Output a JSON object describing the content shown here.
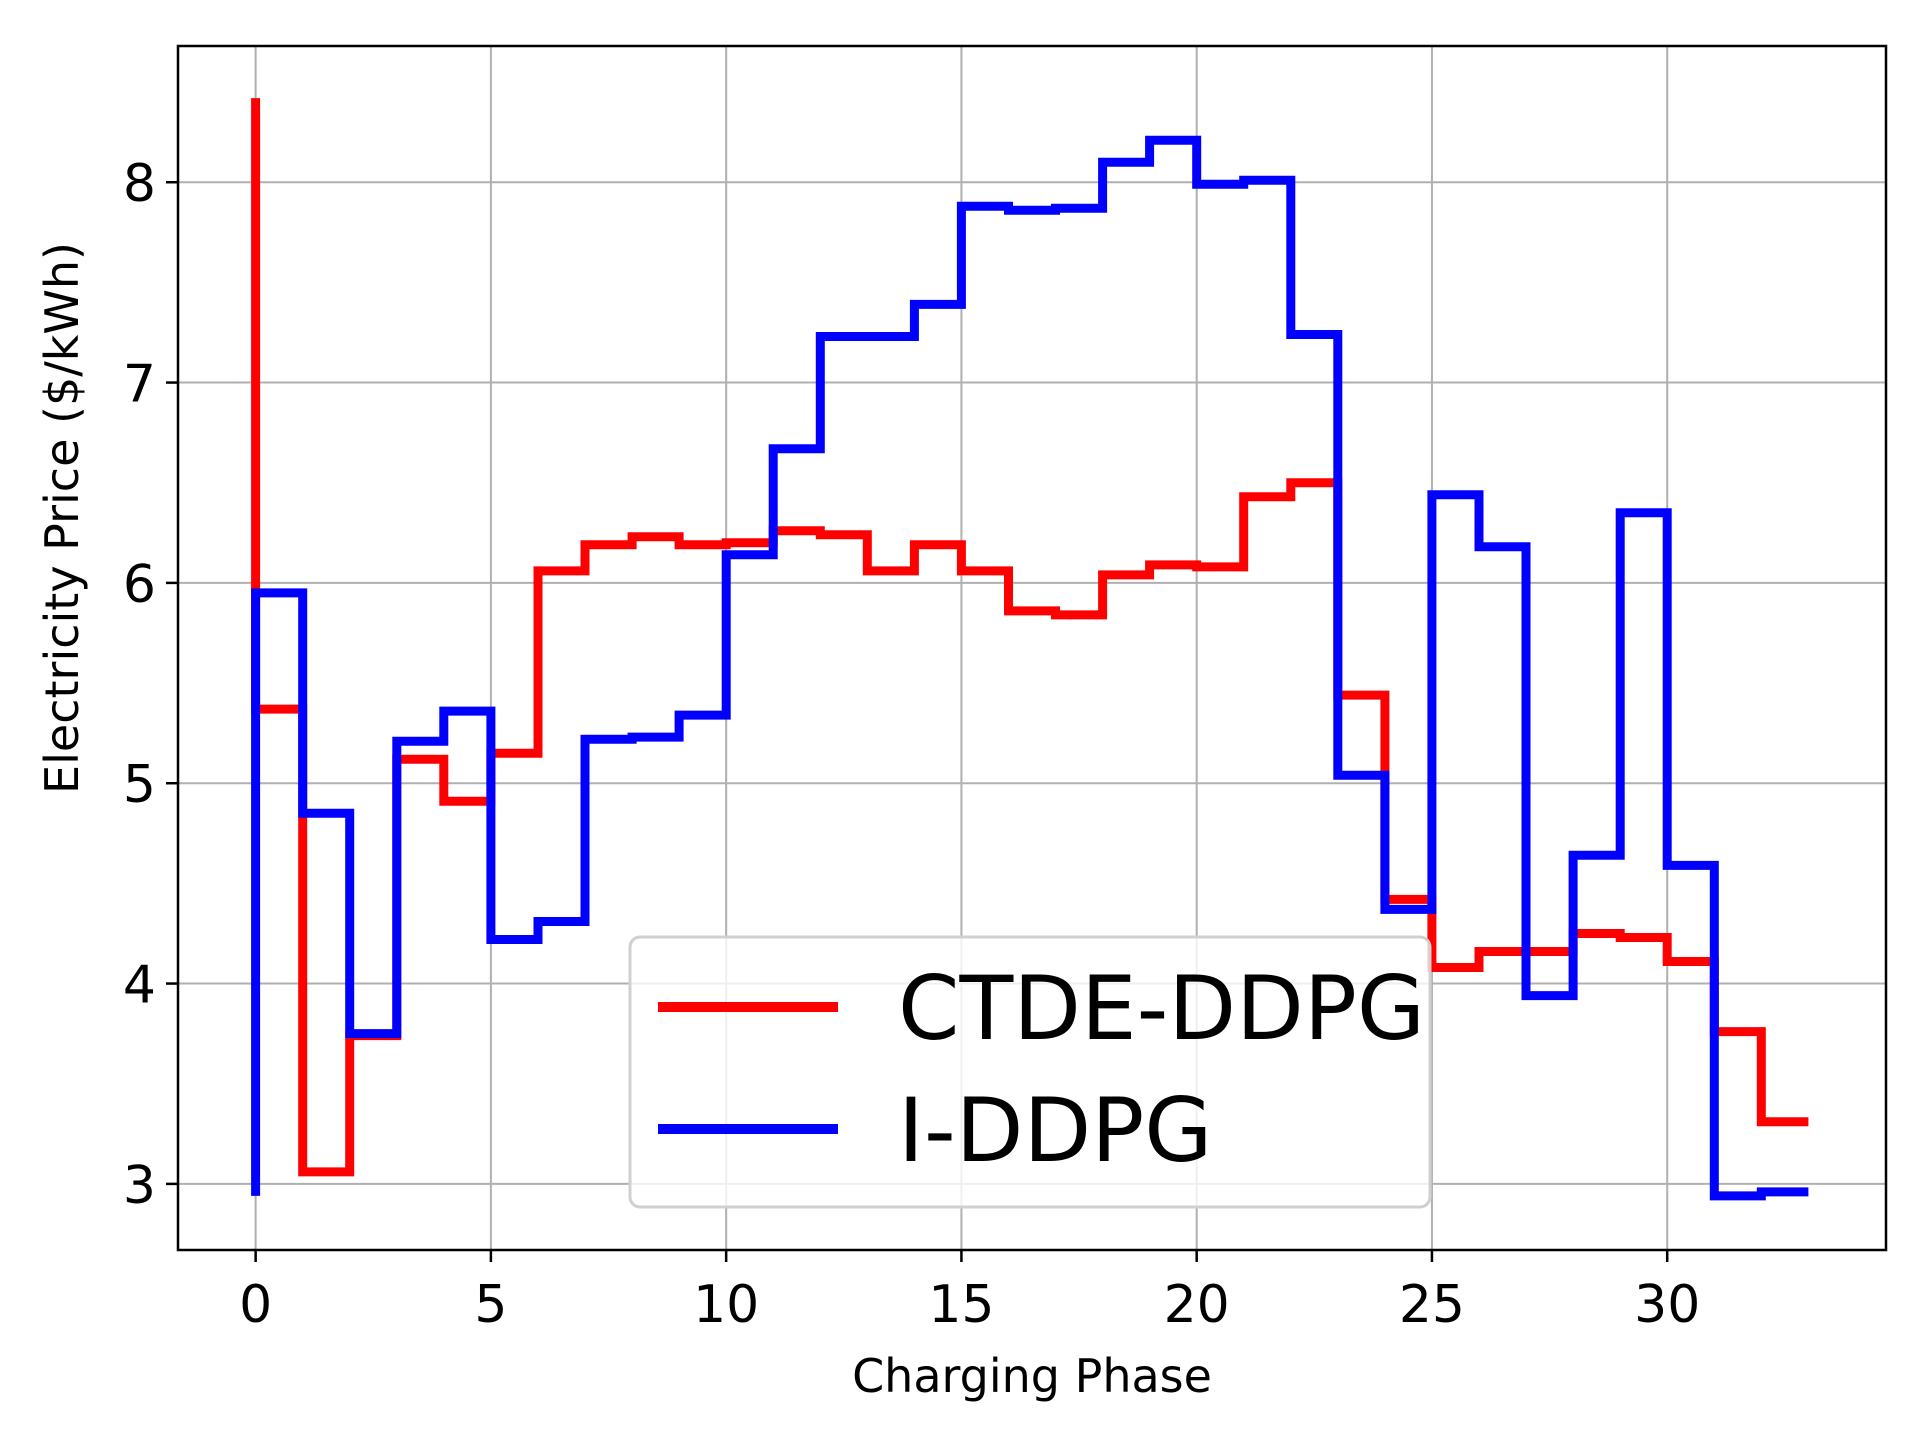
{
  "chart_data": {
    "type": "line",
    "step": "post",
    "title": "",
    "xlabel": "Charging Phase",
    "ylabel": "Electricity Price ($/kWh)",
    "xlim": [
      -1.65,
      34.65
    ],
    "ylim": [
      2.67,
      8.68
    ],
    "xticks": [
      0,
      5,
      10,
      15,
      20,
      25,
      30
    ],
    "yticks": [
      3,
      4,
      5,
      6,
      7,
      8
    ],
    "grid": true,
    "legend_position": "lower-center",
    "series": [
      {
        "name": "CTDE-DDPG",
        "color": "#ff0000",
        "x": [
          0,
          0,
          1,
          2,
          3,
          4,
          5,
          6,
          7,
          8,
          9,
          10,
          11,
          12,
          13,
          14,
          15,
          16,
          17,
          18,
          19,
          20,
          21,
          22,
          23,
          24,
          25,
          26,
          27,
          28,
          29,
          30,
          31,
          32,
          33
        ],
        "y": [
          8.42,
          5.37,
          3.06,
          3.74,
          5.12,
          4.91,
          5.15,
          6.06,
          6.19,
          6.23,
          6.19,
          6.2,
          6.26,
          6.24,
          6.06,
          6.19,
          6.06,
          5.86,
          5.84,
          6.04,
          6.09,
          6.08,
          6.43,
          6.5,
          5.44,
          4.42,
          4.08,
          4.16,
          4.16,
          4.25,
          4.23,
          4.11,
          3.76,
          3.31,
          3.31
        ]
      },
      {
        "name": "I-DDPG",
        "color": "#0000ff",
        "x": [
          0,
          0,
          1,
          2,
          3,
          4,
          5,
          6,
          7,
          8,
          9,
          10,
          11,
          12,
          13,
          14,
          15,
          16,
          17,
          18,
          19,
          20,
          21,
          22,
          23,
          24,
          25,
          26,
          27,
          28,
          29,
          30,
          31,
          32,
          33
        ],
        "y": [
          2.94,
          5.95,
          4.85,
          3.75,
          5.21,
          5.36,
          4.22,
          4.31,
          5.22,
          5.23,
          5.34,
          6.14,
          6.67,
          7.23,
          7.23,
          7.39,
          7.88,
          7.86,
          7.87,
          8.1,
          8.21,
          7.99,
          8.01,
          7.24,
          5.04,
          4.37,
          6.44,
          6.18,
          3.94,
          4.64,
          6.35,
          4.59,
          2.94,
          2.96,
          2.96
        ]
      }
    ]
  }
}
